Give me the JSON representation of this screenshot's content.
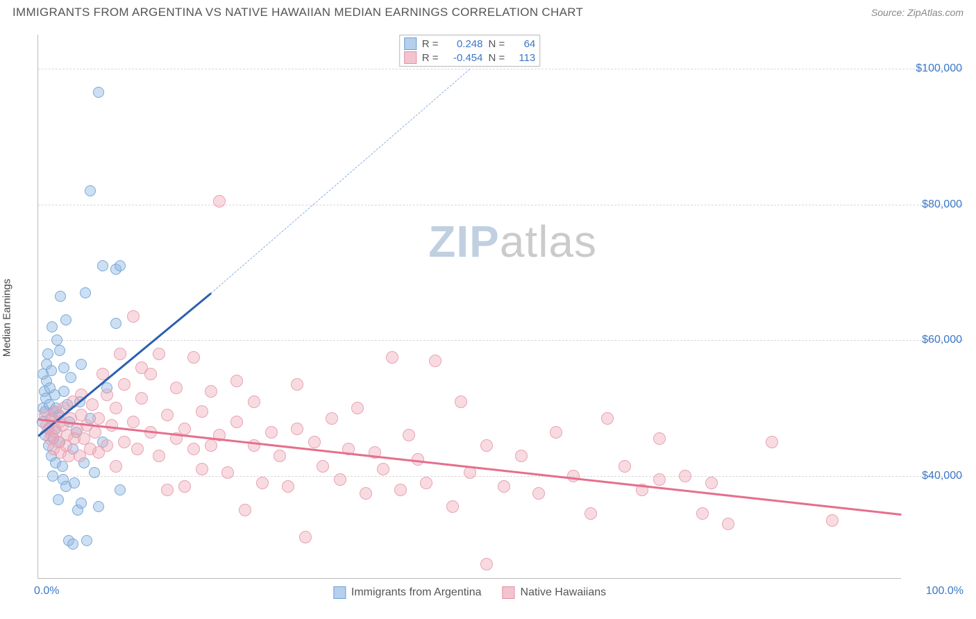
{
  "header": {
    "title": "IMMIGRANTS FROM ARGENTINA VS NATIVE HAWAIIAN MEDIAN EARNINGS CORRELATION CHART",
    "source_prefix": "Source: ",
    "source_name": "ZipAtlas.com"
  },
  "chart": {
    "type": "scatter",
    "ylabel": "Median Earnings",
    "xlim": [
      0,
      100
    ],
    "ylim": [
      25000,
      105000
    ],
    "xtick_labels": {
      "0": "0.0%",
      "100": "100.0%"
    },
    "yticks": [
      40000,
      60000,
      80000,
      100000
    ],
    "ytick_labels": {
      "40000": "$40,000",
      "60000": "$60,000",
      "80000": "$80,000",
      "100000": "$100,000"
    },
    "grid_color": "#d8d8d8",
    "axis_color": "#bbbbbb",
    "background_color": "#ffffff",
    "tick_label_color": "#3a77c9",
    "watermark": {
      "part1": "ZIP",
      "part2": "atlas"
    },
    "series": [
      {
        "key": "argentina",
        "label": "Immigrants from Argentina",
        "legend_fill": "#b6cfec",
        "legend_stroke": "#6b9fd8",
        "marker_fill": "rgba(144,185,226,0.45)",
        "marker_stroke": "#7aa9d8",
        "marker_radius": 8,
        "trend_color": "#2a5fb0",
        "trend_dash_color": "#8aaede",
        "trend": {
          "x1": 0,
          "y1": 46000,
          "x2_solid": 20,
          "y2_solid": 67000,
          "x2": 50,
          "y2": 100000
        },
        "stats": {
          "R": "0.248",
          "N": "64"
        },
        "points": [
          [
            0.5,
            48000
          ],
          [
            0.6,
            50000
          ],
          [
            0.6,
            55000
          ],
          [
            0.7,
            52500
          ],
          [
            0.8,
            46000
          ],
          [
            0.8,
            49500
          ],
          [
            0.9,
            51500
          ],
          [
            1.0,
            56500
          ],
          [
            1.0,
            54000
          ],
          [
            1.1,
            58000
          ],
          [
            1.2,
            44500
          ],
          [
            1.3,
            50500
          ],
          [
            1.3,
            47000
          ],
          [
            1.4,
            53000
          ],
          [
            1.5,
            55500
          ],
          [
            1.5,
            43000
          ],
          [
            1.6,
            62000
          ],
          [
            1.6,
            48500
          ],
          [
            1.7,
            40000
          ],
          [
            1.8,
            45500
          ],
          [
            1.8,
            49500
          ],
          [
            1.9,
            52000
          ],
          [
            2.0,
            42000
          ],
          [
            2.0,
            47000
          ],
          [
            2.1,
            50000
          ],
          [
            2.2,
            60000
          ],
          [
            2.3,
            36500
          ],
          [
            2.4,
            49000
          ],
          [
            2.5,
            58500
          ],
          [
            2.5,
            45000
          ],
          [
            2.6,
            66500
          ],
          [
            2.8,
            41500
          ],
          [
            2.9,
            39500
          ],
          [
            3.0,
            56000
          ],
          [
            3.0,
            52500
          ],
          [
            3.2,
            38500
          ],
          [
            3.2,
            63000
          ],
          [
            3.4,
            50500
          ],
          [
            3.5,
            30500
          ],
          [
            3.6,
            48000
          ],
          [
            3.8,
            54500
          ],
          [
            4.0,
            44000
          ],
          [
            4.0,
            30000
          ],
          [
            4.2,
            39000
          ],
          [
            4.4,
            46500
          ],
          [
            4.6,
            35000
          ],
          [
            4.8,
            51000
          ],
          [
            5.0,
            36000
          ],
          [
            5.0,
            56500
          ],
          [
            5.3,
            42000
          ],
          [
            5.5,
            67000
          ],
          [
            5.6,
            30500
          ],
          [
            6.0,
            82000
          ],
          [
            6.0,
            48500
          ],
          [
            6.5,
            40500
          ],
          [
            7.0,
            96500
          ],
          [
            7.0,
            35500
          ],
          [
            7.5,
            71000
          ],
          [
            7.5,
            45000
          ],
          [
            8.0,
            53000
          ],
          [
            9.0,
            62500
          ],
          [
            9.0,
            70500
          ],
          [
            9.5,
            38000
          ],
          [
            9.5,
            71000
          ]
        ]
      },
      {
        "key": "hawaiian",
        "label": "Native Hawaiians",
        "legend_fill": "#f3c4cf",
        "legend_stroke": "#e48da0",
        "marker_fill": "rgba(238,165,180,0.40)",
        "marker_stroke": "#e9a2b3",
        "marker_radius": 9,
        "trend_color": "#e56f8c",
        "trend": {
          "x1": 0,
          "y1": 48500,
          "x2_solid": 100,
          "y2_solid": 34500,
          "x2": 100,
          "y2": 34500
        },
        "stats": {
          "R": "-0.454",
          "N": "113"
        },
        "points": [
          [
            0.8,
            49000
          ],
          [
            1.0,
            47500
          ],
          [
            1.2,
            47000
          ],
          [
            1.4,
            45500
          ],
          [
            1.5,
            48500
          ],
          [
            1.6,
            46000
          ],
          [
            1.8,
            44000
          ],
          [
            2.0,
            49500
          ],
          [
            2.1,
            46500
          ],
          [
            2.3,
            45000
          ],
          [
            2.5,
            48000
          ],
          [
            2.6,
            43500
          ],
          [
            2.8,
            47500
          ],
          [
            3.0,
            50000
          ],
          [
            3.2,
            44500
          ],
          [
            3.4,
            46000
          ],
          [
            3.5,
            43000
          ],
          [
            3.8,
            48500
          ],
          [
            4.0,
            51000
          ],
          [
            4.2,
            45500
          ],
          [
            4.5,
            47000
          ],
          [
            4.8,
            43000
          ],
          [
            5.0,
            49000
          ],
          [
            5.0,
            52000
          ],
          [
            5.3,
            45500
          ],
          [
            5.6,
            47500
          ],
          [
            6.0,
            44000
          ],
          [
            6.3,
            50500
          ],
          [
            6.6,
            46500
          ],
          [
            7.0,
            43500
          ],
          [
            7.0,
            48500
          ],
          [
            7.5,
            55000
          ],
          [
            8.0,
            44500
          ],
          [
            8.0,
            52000
          ],
          [
            8.5,
            47500
          ],
          [
            9.0,
            41500
          ],
          [
            9.0,
            50000
          ],
          [
            9.5,
            58000
          ],
          [
            10.0,
            45000
          ],
          [
            10.0,
            53500
          ],
          [
            11.0,
            48000
          ],
          [
            11.0,
            63500
          ],
          [
            11.5,
            44000
          ],
          [
            12.0,
            51500
          ],
          [
            12.0,
            56000
          ],
          [
            13.0,
            46500
          ],
          [
            13.0,
            55000
          ],
          [
            14.0,
            43000
          ],
          [
            14.0,
            58000
          ],
          [
            15.0,
            49000
          ],
          [
            15.0,
            38000
          ],
          [
            16.0,
            45500
          ],
          [
            16.0,
            53000
          ],
          [
            17.0,
            38500
          ],
          [
            17.0,
            47000
          ],
          [
            18.0,
            44000
          ],
          [
            18.0,
            57500
          ],
          [
            19.0,
            41000
          ],
          [
            19.0,
            49500
          ],
          [
            20.0,
            44500
          ],
          [
            20.0,
            52500
          ],
          [
            21.0,
            80500
          ],
          [
            21.0,
            46000
          ],
          [
            22.0,
            40500
          ],
          [
            23.0,
            48000
          ],
          [
            23.0,
            54000
          ],
          [
            24.0,
            35000
          ],
          [
            25.0,
            44500
          ],
          [
            25.0,
            51000
          ],
          [
            26.0,
            39000
          ],
          [
            27.0,
            46500
          ],
          [
            28.0,
            43000
          ],
          [
            29.0,
            38500
          ],
          [
            30.0,
            47000
          ],
          [
            30.0,
            53500
          ],
          [
            31.0,
            31000
          ],
          [
            32.0,
            45000
          ],
          [
            33.0,
            41500
          ],
          [
            34.0,
            48500
          ],
          [
            35.0,
            39500
          ],
          [
            36.0,
            44000
          ],
          [
            37.0,
            50000
          ],
          [
            38.0,
            37500
          ],
          [
            39.0,
            43500
          ],
          [
            40.0,
            41000
          ],
          [
            41.0,
            57500
          ],
          [
            42.0,
            38000
          ],
          [
            43.0,
            46000
          ],
          [
            44.0,
            42500
          ],
          [
            45.0,
            39000
          ],
          [
            46.0,
            57000
          ],
          [
            48.0,
            35500
          ],
          [
            49.0,
            51000
          ],
          [
            50.0,
            40500
          ],
          [
            52.0,
            44500
          ],
          [
            52.0,
            27000
          ],
          [
            54.0,
            38500
          ],
          [
            56.0,
            43000
          ],
          [
            58.0,
            37500
          ],
          [
            60.0,
            46500
          ],
          [
            62.0,
            40000
          ],
          [
            64.0,
            34500
          ],
          [
            66.0,
            48500
          ],
          [
            68.0,
            41500
          ],
          [
            70.0,
            38000
          ],
          [
            72.0,
            39500
          ],
          [
            72.0,
            45500
          ],
          [
            75.0,
            40000
          ],
          [
            77.0,
            34500
          ],
          [
            78.0,
            39000
          ],
          [
            80.0,
            33000
          ],
          [
            85.0,
            45000
          ],
          [
            92.0,
            33500
          ]
        ]
      }
    ]
  }
}
